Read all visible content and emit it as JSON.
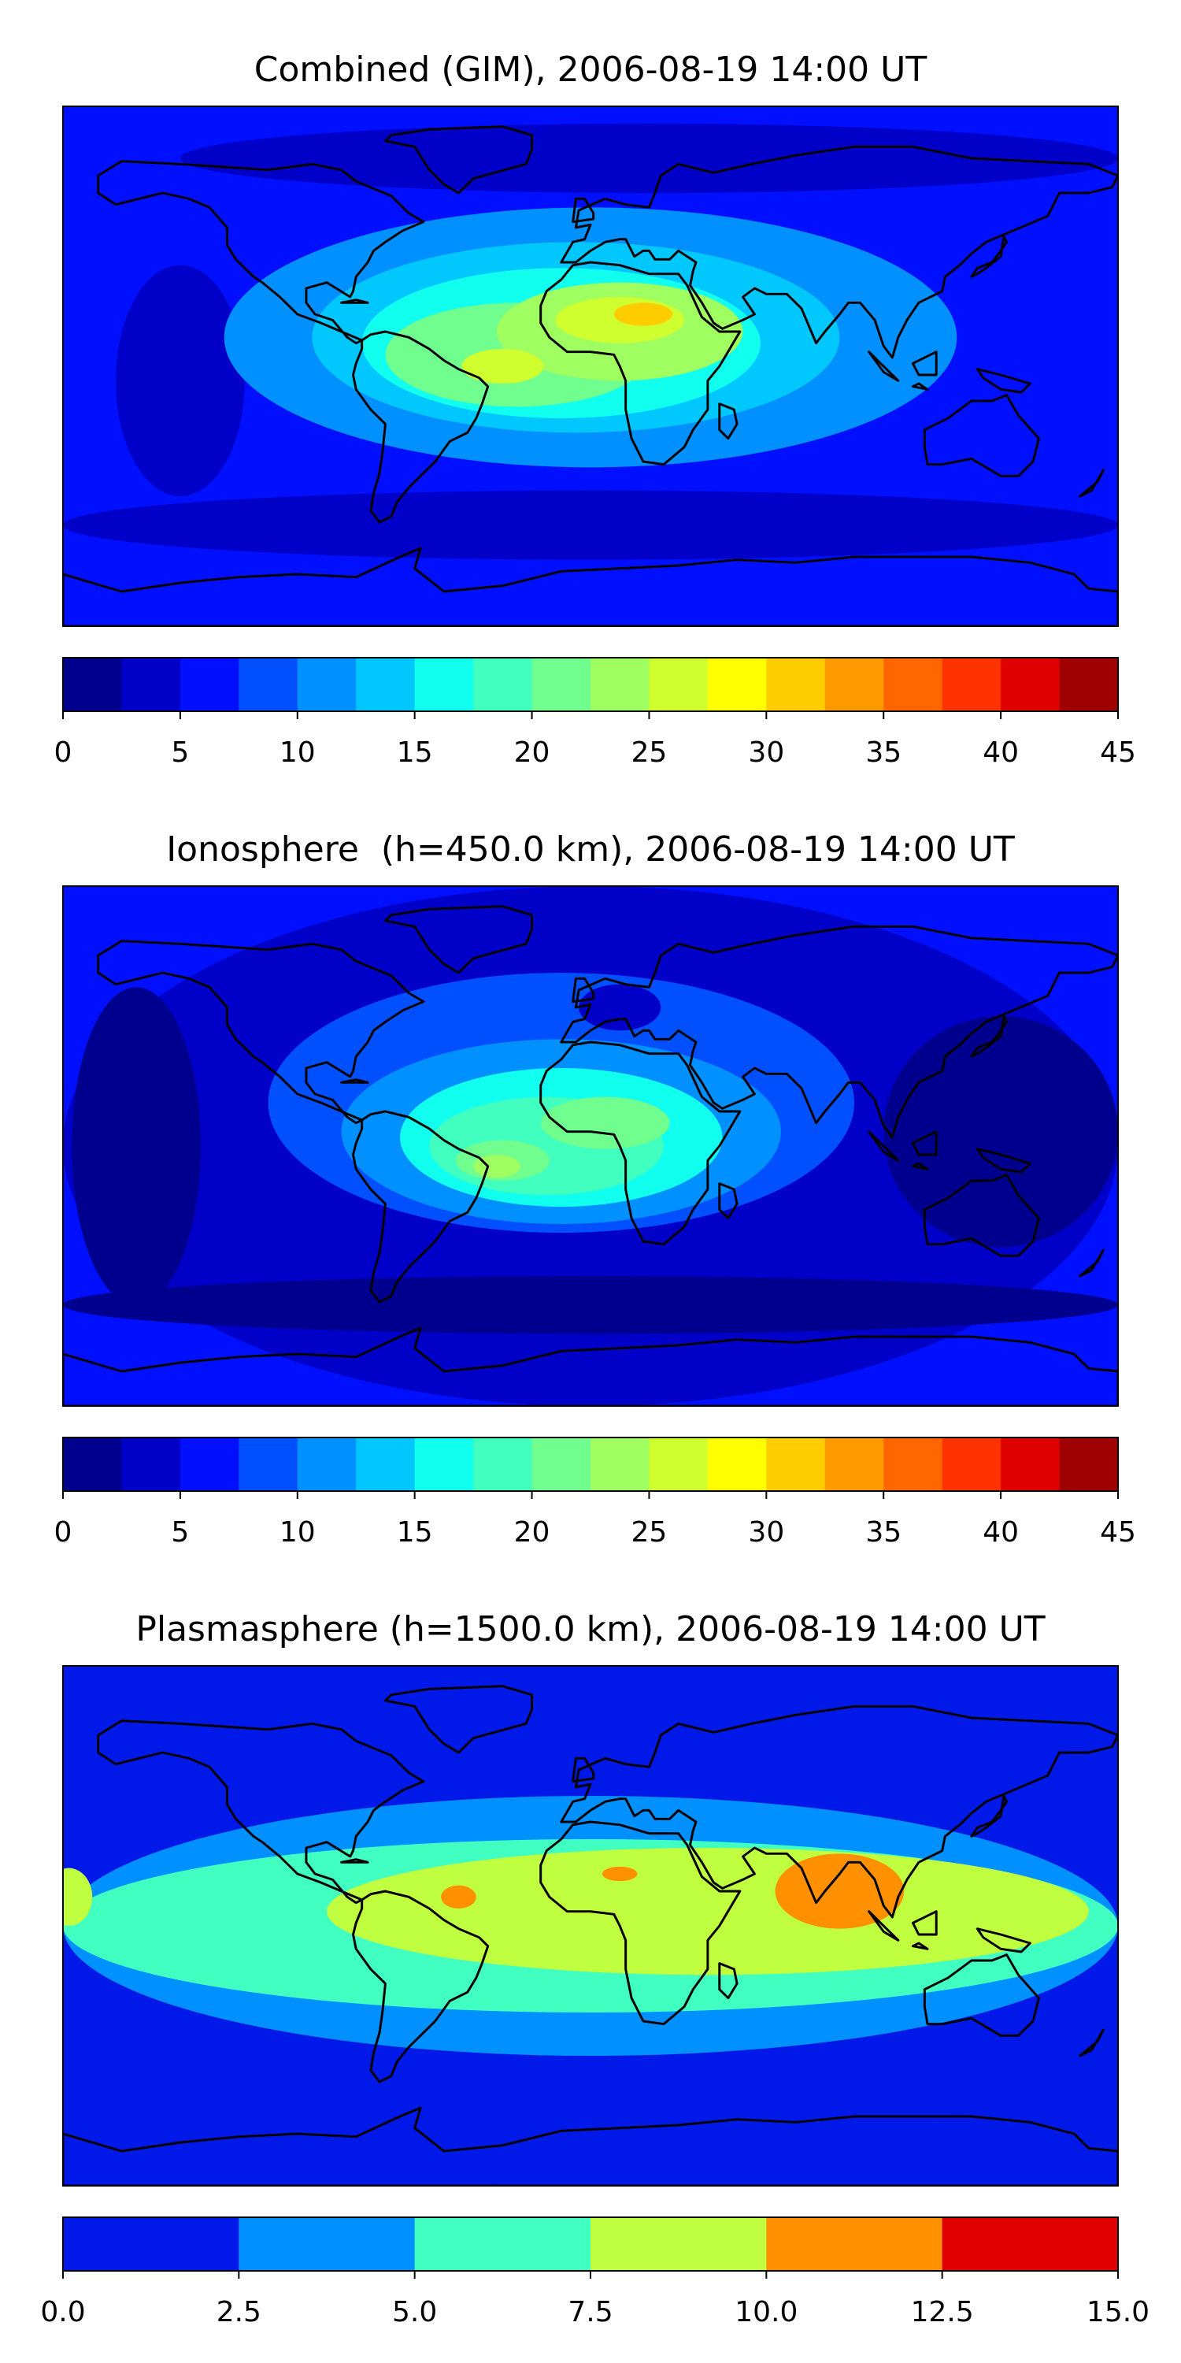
{
  "chart_data": [
    {
      "type": "heatmap",
      "title": "Combined (GIM), 2006-08-19 14:00 UT",
      "xlabel": "",
      "ylabel": "",
      "colorbar": {
        "range": [
          0,
          45
        ],
        "levels": [
          0,
          2.5,
          5,
          7.5,
          10,
          12.5,
          15,
          17.5,
          20,
          22.5,
          25,
          27.5,
          30,
          32.5,
          35,
          37.5,
          40,
          42.5,
          45
        ],
        "ticks": [
          "0",
          "5",
          "10",
          "15",
          "20",
          "25",
          "30",
          "35",
          "40",
          "45"
        ],
        "colors": [
          "#00008f",
          "#0000c8",
          "#0010ff",
          "#0050ff",
          "#0090ff",
          "#00c8ff",
          "#10ffef",
          "#40ffbf",
          "#70ff8f",
          "#a0ff60",
          "#d0ff30",
          "#ffff00",
          "#ffcc00",
          "#ff9900",
          "#ff6600",
          "#ff3300",
          "#df0000",
          "#9f0000"
        ]
      },
      "features": [
        {
          "name": "background",
          "lon": 0,
          "lat": 0,
          "rlon": 180,
          "rlat": 90,
          "value": 6
        },
        {
          "name": "south-belt",
          "lon": 0,
          "lat": -55,
          "rlon": 180,
          "rlat": 12,
          "value": 3.5
        },
        {
          "name": "north-high",
          "lon": 20,
          "lat": 72,
          "rlon": 160,
          "rlat": 12,
          "value": 4
        },
        {
          "name": "pacific-east-low",
          "lon": -140,
          "lat": -5,
          "rlon": 22,
          "rlat": 40,
          "value": 4.5
        },
        {
          "name": "main-blob",
          "lon": 0,
          "lat": 10,
          "rlon": 125,
          "rlat": 45,
          "value": 11
        },
        {
          "name": "mid-blob",
          "lon": -5,
          "lat": 10,
          "rlon": 90,
          "rlat": 33,
          "value": 14
        },
        {
          "name": "inner-blob",
          "lon": -10,
          "lat": 8,
          "rlon": 68,
          "rlat": 26,
          "value": 17
        },
        {
          "name": "core-west",
          "lon": -25,
          "lat": 4,
          "rlon": 45,
          "rlat": 18,
          "value": 21
        },
        {
          "name": "core-africa",
          "lon": 10,
          "lat": 12,
          "rlon": 42,
          "rlat": 17,
          "value": 24
        },
        {
          "name": "hot-sahara",
          "lon": 10,
          "lat": 16,
          "rlon": 22,
          "rlat": 8,
          "value": 27
        },
        {
          "name": "hot-west",
          "lon": -30,
          "lat": 0,
          "rlon": 14,
          "rlat": 6,
          "value": 27
        },
        {
          "name": "peak-north-africa",
          "lon": 18,
          "lat": 18,
          "rlon": 10,
          "rlat": 4,
          "value": 31
        }
      ]
    },
    {
      "type": "heatmap",
      "title": "Ionosphere  (h=450.0 km), 2006-08-19 14:00 UT",
      "xlabel": "",
      "ylabel": "",
      "colorbar": {
        "range": [
          0,
          45
        ],
        "levels": [
          0,
          2.5,
          5,
          7.5,
          10,
          12.5,
          15,
          17.5,
          20,
          22.5,
          25,
          27.5,
          30,
          32.5,
          35,
          37.5,
          40,
          42.5,
          45
        ],
        "ticks": [
          "0",
          "5",
          "10",
          "15",
          "20",
          "25",
          "30",
          "35",
          "40",
          "45"
        ],
        "colors": [
          "#00008f",
          "#0000c8",
          "#0010ff",
          "#0050ff",
          "#0090ff",
          "#00c8ff",
          "#10ffef",
          "#40ffbf",
          "#70ff8f",
          "#a0ff60",
          "#d0ff30",
          "#ffff00",
          "#ffcc00",
          "#ff9900",
          "#ff6600",
          "#ff3300",
          "#df0000",
          "#9f0000"
        ]
      },
      "features": [
        {
          "name": "background",
          "lon": 0,
          "lat": 0,
          "rlon": 180,
          "rlat": 90,
          "value": 4
        },
        {
          "name": "pacific-low",
          "lon": -155,
          "lat": 0,
          "rlon": 22,
          "rlat": 55,
          "value": 1.5
        },
        {
          "name": "asia-low",
          "lon": 140,
          "lat": 5,
          "rlon": 40,
          "rlat": 40,
          "value": 1.5
        },
        {
          "name": "south-belt",
          "lon": 0,
          "lat": -55,
          "rlon": 180,
          "rlat": 10,
          "value": 1.5
        },
        {
          "name": "main-blob",
          "lon": -10,
          "lat": 15,
          "rlon": 100,
          "rlat": 45,
          "value": 9
        },
        {
          "name": "europe-dip",
          "lon": 10,
          "lat": 48,
          "rlon": 14,
          "rlat": 8,
          "value": 4
        },
        {
          "name": "mid-blob",
          "lon": -10,
          "lat": 5,
          "rlon": 75,
          "rlat": 32,
          "value": 12
        },
        {
          "name": "inner-blob",
          "lon": -10,
          "lat": 3,
          "rlon": 55,
          "rlat": 24,
          "value": 15
        },
        {
          "name": "core",
          "lon": -15,
          "lat": 0,
          "rlon": 40,
          "rlat": 17,
          "value": 18
        },
        {
          "name": "warm-africa",
          "lon": 5,
          "lat": 8,
          "rlon": 22,
          "rlat": 9,
          "value": 21
        },
        {
          "name": "warm-west",
          "lon": -30,
          "lat": -5,
          "rlon": 16,
          "rlat": 7,
          "value": 21
        },
        {
          "name": "hot-west",
          "lon": -32,
          "lat": -7,
          "rlon": 8,
          "rlat": 4,
          "value": 23.5
        }
      ]
    },
    {
      "type": "heatmap",
      "title": "Plasmasphere (h=1500.0 km), 2006-08-19 14:00 UT",
      "xlabel": "",
      "ylabel": "",
      "colorbar": {
        "range": [
          0,
          15
        ],
        "levels": [
          0,
          2.5,
          5,
          7.5,
          10,
          12.5,
          15
        ],
        "ticks": [
          "0.0",
          "2.5",
          "5.0",
          "7.5",
          "10.0",
          "12.5",
          "15.0"
        ],
        "colors": [
          "#0018e8",
          "#0090ff",
          "#40ffc0",
          "#c0ff40",
          "#ff9000",
          "#e00000"
        ]
      },
      "features": [
        {
          "name": "background",
          "lon": 0,
          "lat": 0,
          "rlon": 180,
          "rlat": 90,
          "value": 1.5
        },
        {
          "name": "broad-band",
          "lon": 0,
          "lat": 0,
          "rlon": 180,
          "rlat": 45,
          "value": 3.5
        },
        {
          "name": "teal-band",
          "lon": 0,
          "lat": 0,
          "rlon": 180,
          "rlat": 30,
          "value": 6
        },
        {
          "name": "yellow-band",
          "lon": 40,
          "lat": 5,
          "rlon": 130,
          "rlat": 22,
          "value": 8.5
        },
        {
          "name": "west-pacific-yellow",
          "lon": -178,
          "lat": 10,
          "rlon": 8,
          "rlat": 10,
          "value": 8.5
        },
        {
          "name": "orange-india",
          "lon": 85,
          "lat": 12,
          "rlon": 22,
          "rlat": 13,
          "value": 11
        },
        {
          "name": "orange-atlantic",
          "lon": -45,
          "lat": 10,
          "rlon": 6,
          "rlat": 4,
          "value": 11
        },
        {
          "name": "orange-sahara",
          "lon": 10,
          "lat": 18,
          "rlon": 6,
          "rlat": 2.5,
          "value": 11
        }
      ]
    }
  ]
}
